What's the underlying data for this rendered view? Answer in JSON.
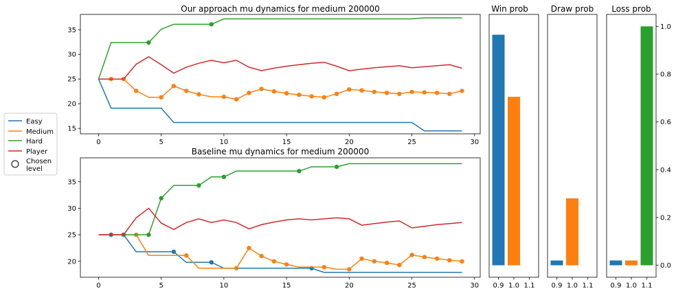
{
  "colors": {
    "Easy": "#1f77b4",
    "Medium": "#ff7f0e",
    "Hard": "#2ca02c",
    "Player": "#d62728"
  },
  "legend": {
    "entries": [
      "Easy",
      "Medium",
      "Hard",
      "Player"
    ],
    "chosen_label_line1": "Chosen",
    "chosen_label_line2": "level"
  },
  "chart_data": [
    {
      "type": "line",
      "title": "Our approach mu dynamics for medium 200000",
      "xlim": [
        -1.45,
        30.45
      ],
      "ylim": [
        13.9,
        38.1
      ],
      "xticks": [
        0,
        5,
        10,
        15,
        20,
        25,
        30
      ],
      "yticks": [
        15,
        20,
        25,
        30,
        35
      ],
      "grid": false,
      "series": [
        {
          "name": "Easy",
          "x": [
            0,
            1,
            2,
            3,
            4,
            5,
            6,
            7,
            8,
            9,
            10,
            11,
            12,
            13,
            14,
            15,
            16,
            17,
            18,
            19,
            20,
            21,
            22,
            23,
            24,
            25,
            26,
            27,
            28,
            29
          ],
          "y": [
            25,
            19.1,
            19.1,
            19.1,
            19.1,
            19.1,
            16.2,
            16.2,
            16.2,
            16.2,
            16.2,
            16.2,
            16.2,
            16.2,
            16.2,
            16.2,
            16.2,
            16.2,
            16.2,
            16.2,
            16.2,
            16.2,
            16.2,
            16.2,
            16.2,
            16.2,
            14.5,
            14.5,
            14.5,
            14.5
          ],
          "chosen": []
        },
        {
          "name": "Medium",
          "x": [
            0,
            1,
            2,
            3,
            4,
            5,
            6,
            7,
            8,
            9,
            10,
            11,
            12,
            13,
            14,
            15,
            16,
            17,
            18,
            19,
            20,
            21,
            22,
            23,
            24,
            25,
            26,
            27,
            28,
            29
          ],
          "y": [
            25,
            25,
            25,
            22.6,
            21.3,
            21.3,
            23.6,
            22.6,
            21.9,
            21.4,
            21.4,
            20.9,
            22.2,
            23.0,
            22.5,
            22.1,
            21.8,
            21.5,
            21.3,
            22.0,
            22.9,
            22.7,
            22.4,
            22.2,
            22.0,
            22.4,
            22.3,
            22.2,
            22.0,
            22.6
          ],
          "chosen": [
            1,
            2,
            3,
            5,
            6,
            7,
            8,
            10,
            11,
            12,
            13,
            14,
            15,
            16,
            17,
            18,
            19,
            20,
            21,
            22,
            23,
            24,
            25,
            26,
            27,
            28,
            29
          ]
        },
        {
          "name": "Hard",
          "x": [
            0,
            1,
            2,
            3,
            4,
            5,
            6,
            7,
            8,
            9,
            10,
            11,
            12,
            13,
            14,
            15,
            16,
            17,
            18,
            19,
            20,
            21,
            22,
            23,
            24,
            25,
            26,
            27,
            28,
            29
          ],
          "y": [
            25,
            32.4,
            32.4,
            32.4,
            32.4,
            35.1,
            36.1,
            36.1,
            36.1,
            36.1,
            37.2,
            37.2,
            37.2,
            37.2,
            37.2,
            37.2,
            37.2,
            37.2,
            37.2,
            37.2,
            37.2,
            37.2,
            37.2,
            37.2,
            37.2,
            37.2,
            37.4,
            37.4,
            37.4,
            37.4
          ],
          "chosen": [
            4,
            9
          ]
        },
        {
          "name": "Player",
          "x": [
            0,
            1,
            2,
            3,
            4,
            5,
            6,
            7,
            8,
            9,
            10,
            11,
            12,
            13,
            14,
            15,
            16,
            17,
            18,
            19,
            20,
            21,
            22,
            23,
            24,
            25,
            26,
            27,
            28,
            29
          ],
          "y": [
            25,
            25,
            25,
            28.0,
            29.5,
            27.9,
            26.2,
            27.4,
            28.2,
            28.8,
            28.3,
            28.8,
            27.4,
            26.7,
            27.2,
            27.6,
            27.9,
            28.2,
            28.4,
            27.6,
            26.7,
            27.0,
            27.3,
            27.5,
            27.7,
            27.3,
            27.5,
            27.7,
            27.9,
            27.2
          ],
          "chosen": []
        }
      ]
    },
    {
      "type": "line",
      "title": "Baseline mu dynamics for medium 200000",
      "xlim": [
        -1.45,
        30.45
      ],
      "ylim": [
        17.0,
        39.5
      ],
      "xticks": [
        0,
        5,
        10,
        15,
        20,
        25,
        30
      ],
      "yticks": [
        20,
        25,
        30,
        35
      ],
      "grid": false,
      "series": [
        {
          "name": "Easy",
          "x": [
            0,
            1,
            2,
            3,
            4,
            5,
            6,
            7,
            8,
            9,
            10,
            11,
            12,
            13,
            14,
            15,
            16,
            17,
            18,
            19,
            20,
            21,
            22,
            23,
            24,
            25,
            26,
            27,
            28,
            29
          ],
          "y": [
            25,
            25,
            25,
            21.8,
            21.8,
            21.8,
            21.8,
            19.8,
            19.8,
            19.8,
            18.7,
            18.7,
            18.7,
            18.7,
            18.7,
            18.7,
            18.7,
            18.7,
            17.9,
            17.9,
            17.9,
            17.9,
            17.9,
            17.9,
            17.9,
            17.9,
            17.9,
            17.9,
            17.9,
            17.9
          ],
          "chosen": [
            1,
            2,
            6,
            9,
            17
          ]
        },
        {
          "name": "Medium",
          "x": [
            0,
            1,
            2,
            3,
            4,
            5,
            6,
            7,
            8,
            9,
            10,
            11,
            12,
            13,
            14,
            15,
            16,
            17,
            18,
            19,
            20,
            21,
            22,
            23,
            24,
            25,
            26,
            27,
            28,
            29
          ],
          "y": [
            25,
            25,
            25,
            25,
            21.1,
            21.1,
            21.1,
            21.1,
            18.7,
            18.7,
            18.7,
            18.7,
            22.5,
            21.0,
            20.0,
            19.4,
            18.9,
            18.9,
            18.9,
            18.5,
            18.5,
            20.5,
            20.0,
            19.7,
            19.3,
            21.2,
            20.8,
            20.5,
            20.2,
            20.0
          ],
          "chosen": [
            3,
            7,
            11,
            12,
            13,
            14,
            15,
            18,
            20,
            21,
            22,
            23,
            24,
            25,
            26,
            27,
            28,
            29
          ]
        },
        {
          "name": "Hard",
          "x": [
            0,
            1,
            2,
            3,
            4,
            5,
            6,
            7,
            8,
            9,
            10,
            11,
            12,
            13,
            14,
            15,
            16,
            17,
            18,
            19,
            20,
            21,
            22,
            23,
            24,
            25,
            26,
            27,
            28,
            29
          ],
          "y": [
            25,
            25,
            25,
            25,
            25,
            31.9,
            34.3,
            34.3,
            34.3,
            35.9,
            35.9,
            37.0,
            37.0,
            37.0,
            37.0,
            37.0,
            37.0,
            37.8,
            37.8,
            37.8,
            38.4,
            38.4,
            38.4,
            38.4,
            38.4,
            38.4,
            38.4,
            38.4,
            38.4,
            38.4
          ],
          "chosen": [
            4,
            5,
            8,
            10,
            16,
            19
          ]
        },
        {
          "name": "Player",
          "x": [
            0,
            1,
            2,
            3,
            4,
            5,
            6,
            7,
            8,
            9,
            10,
            11,
            12,
            13,
            14,
            15,
            16,
            17,
            18,
            19,
            20,
            21,
            22,
            23,
            24,
            25,
            26,
            27,
            28,
            29
          ],
          "y": [
            25,
            25,
            25,
            28.2,
            30.0,
            27.2,
            26.0,
            27.3,
            28.0,
            27.3,
            27.8,
            27.3,
            26.1,
            26.9,
            27.4,
            27.8,
            28.0,
            27.8,
            28.0,
            28.2,
            28.0,
            26.8,
            27.1,
            27.4,
            27.6,
            26.3,
            26.6,
            26.9,
            27.1,
            27.3
          ],
          "chosen": []
        }
      ]
    },
    {
      "type": "bar",
      "title": "Win prob",
      "categories": [
        "0.9",
        "1.0",
        "1.1"
      ],
      "values": [
        0.965,
        0.705,
        0.0
      ],
      "bar_colors": [
        "Easy",
        "Medium",
        "Hard"
      ],
      "ylim": [
        -0.05,
        1.05
      ],
      "grid": false
    },
    {
      "type": "bar",
      "title": "Draw prob",
      "categories": [
        "0.9",
        "1.0",
        "1.1"
      ],
      "values": [
        0.02,
        0.28,
        0.0
      ],
      "bar_colors": [
        "Easy",
        "Medium",
        "Hard"
      ],
      "ylim": [
        -0.05,
        1.05
      ],
      "grid": false
    },
    {
      "type": "bar",
      "title": "Loss prob",
      "categories": [
        "0.9",
        "1.0",
        "1.1"
      ],
      "values": [
        0.02,
        0.02,
        1.0
      ],
      "bar_colors": [
        "Easy",
        "Medium",
        "Hard"
      ],
      "ylim": [
        -0.05,
        1.05
      ],
      "yticks": [
        0.0,
        0.2,
        0.4,
        0.6,
        0.8,
        1.0
      ],
      "ytick_labels": [
        "0.0",
        "0.2",
        "0.4",
        "0.6",
        "0.8",
        "1.0"
      ],
      "grid": false
    }
  ]
}
